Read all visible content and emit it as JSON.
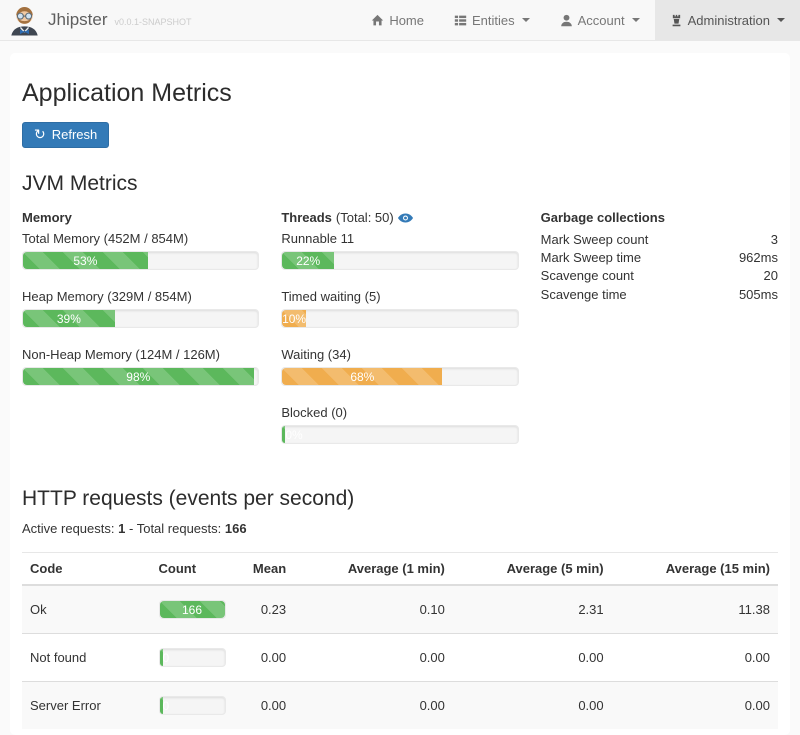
{
  "colors": {
    "green": "#5cb85c",
    "orange": "#f0ad4e",
    "accent": "#337ab7"
  },
  "navbar": {
    "brand": "Jhipster",
    "version": "v0.0.1-SNAPSHOT",
    "items": [
      {
        "label": "Home"
      },
      {
        "label": "Entities"
      },
      {
        "label": "Account"
      },
      {
        "label": "Administration"
      }
    ]
  },
  "page": {
    "title": "Application Metrics",
    "refresh": "Refresh"
  },
  "jvm": {
    "title": "JVM Metrics",
    "memory": {
      "heading": "Memory",
      "bars": [
        {
          "label": "Total Memory (452M / 854M)",
          "percent": 53,
          "text": "53%",
          "color": "green"
        },
        {
          "label": "Heap Memory (329M / 854M)",
          "percent": 39,
          "text": "39%",
          "color": "green"
        },
        {
          "label": "Non-Heap Memory (124M / 126M)",
          "percent": 98,
          "text": "98%",
          "color": "green"
        }
      ]
    },
    "threads": {
      "heading": "Threads",
      "total": "(Total: 50)",
      "bars": [
        {
          "label": "Runnable 11",
          "percent": 22,
          "text": "22%",
          "color": "green"
        },
        {
          "label": "Timed waiting (5)",
          "percent": 10,
          "text": "10%",
          "color": "orange"
        },
        {
          "label": "Waiting (34)",
          "percent": 68,
          "text": "68%",
          "color": "orange"
        },
        {
          "label": "Blocked (0)",
          "percent": 0,
          "text": "0%",
          "color": "green"
        }
      ]
    },
    "gc": {
      "heading": "Garbage collections",
      "rows": [
        {
          "label": "Mark Sweep count",
          "value": "3"
        },
        {
          "label": "Mark Sweep time",
          "value": "962ms"
        },
        {
          "label": "Scavenge count",
          "value": "20"
        },
        {
          "label": "Scavenge time",
          "value": "505ms"
        }
      ]
    }
  },
  "http": {
    "title": "HTTP requests (events per second)",
    "active_label": "Active requests:",
    "active_value": "1",
    "separator": "-",
    "total_label": "Total requests:",
    "total_value": "166",
    "headers": [
      "Code",
      "Count",
      "Mean",
      "Average (1 min)",
      "Average (5 min)",
      "Average (15 min)"
    ],
    "rows": [
      {
        "code": "Ok",
        "count_text": "166",
        "count_percent": 100,
        "bar_color": "green",
        "mean": "0.23",
        "avg1": "0.10",
        "avg5": "2.31",
        "avg15": "11.38"
      },
      {
        "code": "Not found",
        "count_text": "0",
        "count_percent": 0,
        "bar_color": "green",
        "mean": "0.00",
        "avg1": "0.00",
        "avg5": "0.00",
        "avg15": "0.00"
      },
      {
        "code": "Server Error",
        "count_text": "0",
        "count_percent": 0,
        "bar_color": "green",
        "mean": "0.00",
        "avg1": "0.00",
        "avg5": "0.00",
        "avg15": "0.00"
      }
    ]
  }
}
